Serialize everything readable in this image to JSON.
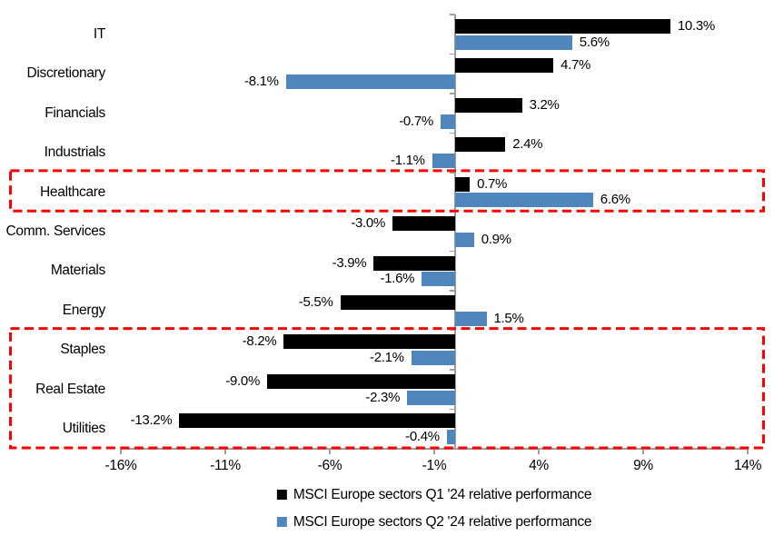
{
  "chart_data": {
    "type": "bar",
    "orientation": "horizontal",
    "title": "",
    "categories": [
      "IT",
      "Discretionary",
      "Financials",
      "Industrials",
      "Healthcare",
      "Comm. Services",
      "Materials",
      "Energy",
      "Staples",
      "Real Estate",
      "Utilities"
    ],
    "series": [
      {
        "name": "MSCI Europe sectors Q1 '24 relative performance",
        "color": "#000000",
        "values": [
          10.3,
          4.7,
          3.2,
          2.4,
          0.7,
          -3.0,
          -3.9,
          -5.5,
          -8.2,
          -9.0,
          -13.2
        ],
        "labels": [
          "10.3%",
          "4.7%",
          "3.2%",
          "2.4%",
          "0.7%",
          "-3.0%",
          "-3.9%",
          "-5.5%",
          "-8.2%",
          "-9.0%",
          "-13.2%"
        ]
      },
      {
        "name": "MSCI Europe sectors Q2 '24 relative performance",
        "color": "#4E86BD",
        "values": [
          5.6,
          -8.1,
          -0.7,
          -1.1,
          6.6,
          0.9,
          -1.6,
          1.5,
          -2.1,
          -2.3,
          -0.4
        ],
        "labels": [
          "5.6%",
          "-8.1%",
          "-0.7%",
          "-1.1%",
          "6.6%",
          "0.9%",
          "-1.6%",
          "1.5%",
          "-2.1%",
          "-2.3%",
          "-0.4%"
        ]
      }
    ],
    "xlim": [
      -16,
      14
    ],
    "x_ticks": [
      -16,
      -11,
      -6,
      -1,
      4,
      9,
      14
    ],
    "x_tick_labels": [
      "-16%",
      "-11%",
      "-6%",
      "-1%",
      "4%",
      "9%",
      "14%"
    ],
    "grid": false,
    "legend_position": "bottom",
    "axis_color": "#9E9E9E",
    "text_color": "#000000",
    "highlight_color": "#FF0000",
    "highlights": [
      {
        "name": "healthcare-highlight",
        "rows": [
          "Healthcare"
        ],
        "from_row": 4,
        "to_row": 4
      },
      {
        "name": "defensives-highlight",
        "rows": [
          "Staples",
          "Real Estate",
          "Utilities"
        ],
        "from_row": 8,
        "to_row": 10
      }
    ]
  }
}
